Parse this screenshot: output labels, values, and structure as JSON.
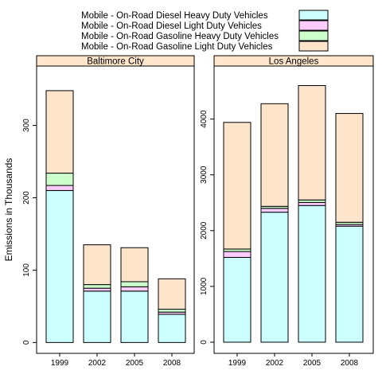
{
  "chart_data": {
    "type": "bar",
    "stacked": true,
    "ylabel": "Emissions in Thousands",
    "categories": [
      "1999",
      "2002",
      "2005",
      "2008"
    ],
    "legend": {
      "placement": "top",
      "entries": [
        {
          "name": "Mobile - On-Road Diesel Heavy Duty Vehicles",
          "color": "#CCFFFF"
        },
        {
          "name": "Mobile - On-Road Diesel Light Duty Vehicles",
          "color": "#FFCCFF"
        },
        {
          "name": "Mobile - On-Road Gasoline Heavy Duty Vehicles",
          "color": "#CCFFCC"
        },
        {
          "name": "Mobile - On-Road Gasoline Light Duty Vehicles",
          "color": "#FFE4CC"
        }
      ]
    },
    "strip_color": "#FFE5CC",
    "panels": [
      {
        "title": "Baltimore City",
        "ylim": [
          -15,
          382
        ],
        "yticks": [
          0,
          100,
          200,
          300
        ],
        "series": [
          {
            "name": "Mobile - On-Road Diesel Heavy Duty Vehicles",
            "values": [
              210,
              71,
              71,
              39
            ]
          },
          {
            "name": "Mobile - On-Road Diesel Light Duty Vehicles",
            "values": [
              7,
              4,
              6,
              3
            ]
          },
          {
            "name": "Mobile - On-Road Gasoline Heavy Duty Vehicles",
            "values": [
              17,
              5,
              7,
              4
            ]
          },
          {
            "name": "Mobile - On-Road Gasoline Light Duty Vehicles",
            "values": [
              114,
              55,
              47,
              42
            ]
          }
        ]
      },
      {
        "title": "Los Angeles",
        "ylim": [
          -200,
          4950
        ],
        "yticks": [
          0,
          1000,
          2000,
          3000,
          4000
        ],
        "series": [
          {
            "name": "Mobile - On-Road Diesel Heavy Duty Vehicles",
            "values": [
              1520,
              2330,
              2450,
              2080
            ]
          },
          {
            "name": "Mobile - On-Road Diesel Light Duty Vehicles",
            "values": [
              105,
              70,
              55,
              30
            ]
          },
          {
            "name": "Mobile - On-Road Gasoline Heavy Duty Vehicles",
            "values": [
              45,
              35,
              45,
              40
            ]
          },
          {
            "name": "Mobile - On-Road Gasoline Light Duty Vehicles",
            "values": [
              2270,
              1840,
              2050,
              1950
            ]
          }
        ]
      }
    ]
  }
}
